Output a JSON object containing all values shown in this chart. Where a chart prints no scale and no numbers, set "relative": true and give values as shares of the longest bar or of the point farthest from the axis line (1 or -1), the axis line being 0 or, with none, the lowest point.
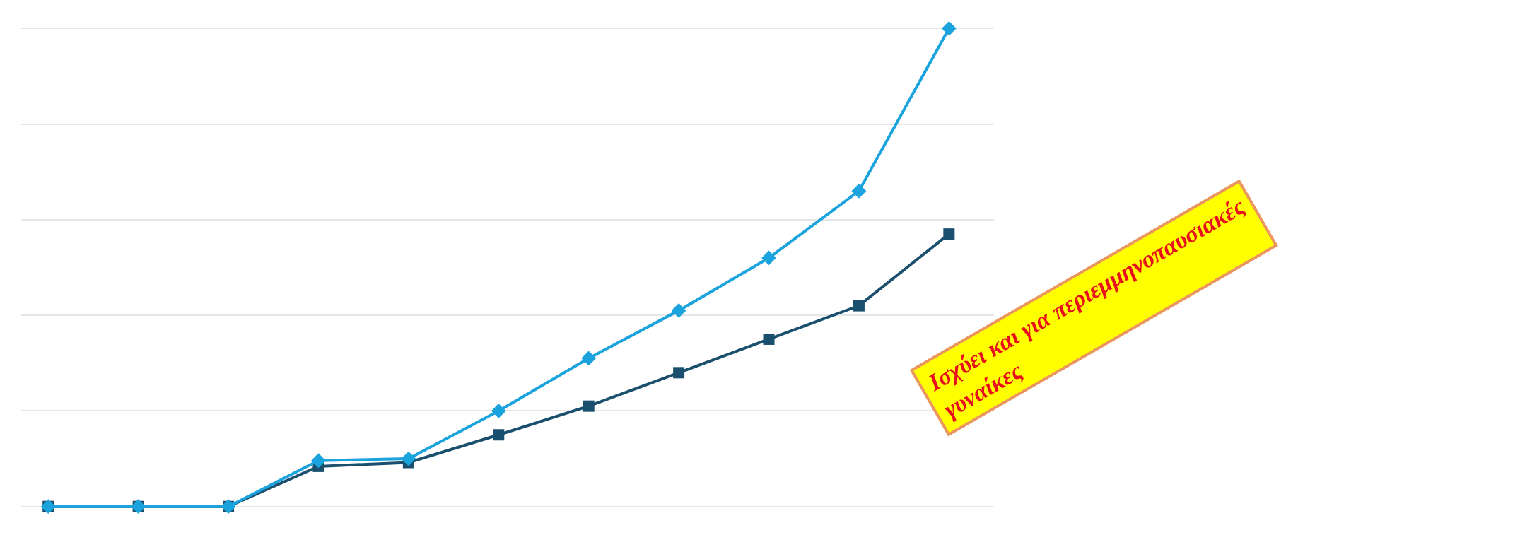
{
  "chart_data": {
    "type": "line",
    "relative": true,
    "grid": "y",
    "categories": [
      null,
      null,
      null,
      null,
      null,
      null,
      null,
      null,
      null,
      null,
      null
    ],
    "series": [
      {
        "color": "#1aa3dc",
        "marker": "diamond",
        "values": [
          0,
          0,
          0,
          0.096,
          0.1,
          0.2,
          0.31,
          0.41,
          0.52,
          0.66,
          1
        ]
      },
      {
        "color": "#1a4f6e",
        "marker": "square",
        "values": [
          0,
          0,
          0,
          0.084,
          0.092,
          0.15,
          0.21,
          0.28,
          0.35,
          0.42,
          0.57
        ]
      }
    ],
    "annotations": [
      "Ισχύει και για περιεμμηνοπαυσιακές\nγυναίκες"
    ]
  }
}
